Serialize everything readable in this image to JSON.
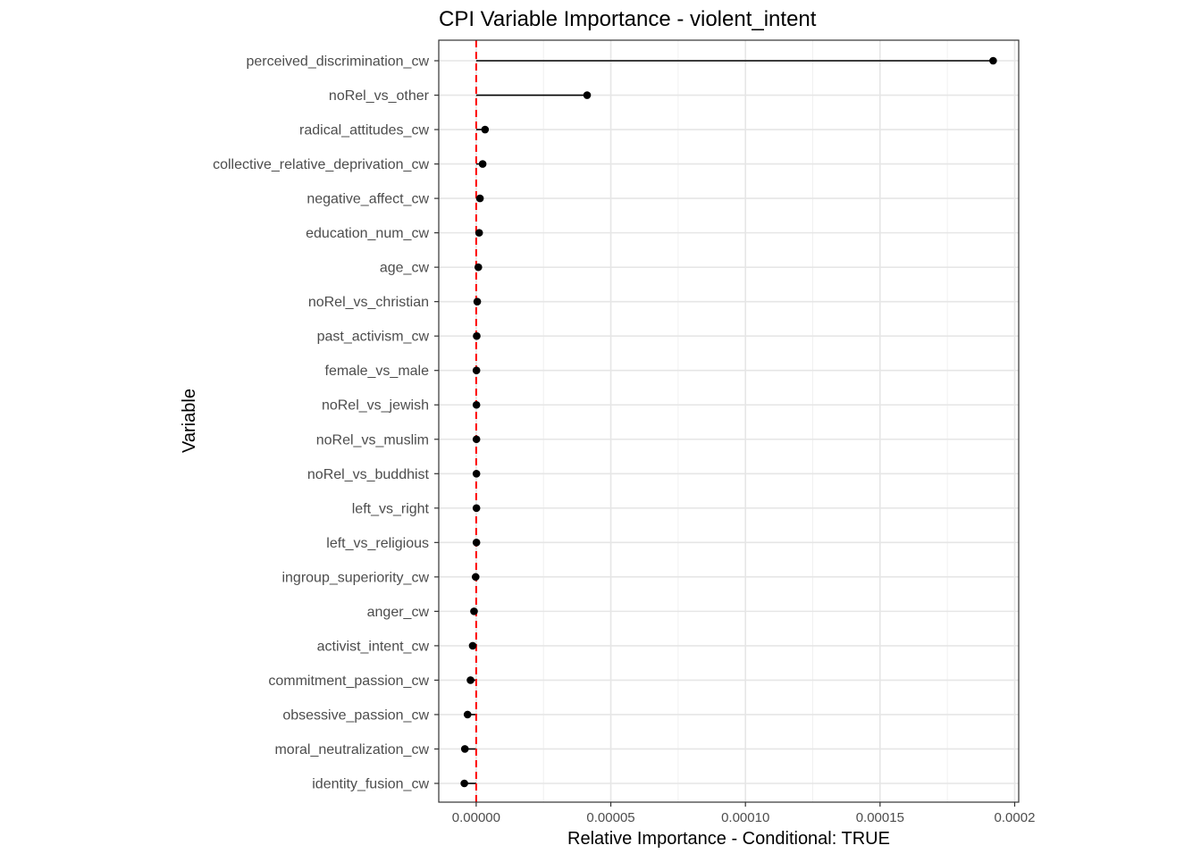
{
  "chart_data": {
    "type": "lollipop",
    "title": "CPI Variable Importance - violent_intent",
    "xlabel": "Relative Importance - Conditional: TRUE",
    "ylabel": "Variable",
    "xlim": [
      -1.39e-05,
      0.0002015
    ],
    "x_ticks": [
      0,
      5e-05,
      0.0001,
      0.00015,
      0.0002
    ],
    "x_tick_labels": [
      "0.00000",
      "0.00005",
      "0.00010",
      "0.00015",
      "0.0002"
    ],
    "reference_line": {
      "x": 0,
      "style": "dashed",
      "color": "#ff0000"
    },
    "grid": true,
    "categories": [
      "perceived_discrimination_cw",
      "noRel_vs_other",
      "radical_attitudes_cw",
      "collective_relative_deprivation_cw",
      "negative_affect_cw",
      "education_num_cw",
      "age_cw",
      "noRel_vs_christian",
      "past_activism_cw",
      "female_vs_male",
      "noRel_vs_jewish",
      "noRel_vs_muslim",
      "noRel_vs_buddhist",
      "left_vs_right",
      "left_vs_religious",
      "ingroup_superiority_cw",
      "anger_cw",
      "activist_intent_cw",
      "commitment_passion_cw",
      "obsessive_passion_cw",
      "moral_neutralization_cw",
      "identity_fusion_cw"
    ],
    "values": [
      0.000192,
      4.12e-05,
      3.3e-06,
      2.4e-06,
      1.4e-06,
      1.1e-06,
      8e-07,
      4e-07,
      2e-07,
      1e-07,
      1e-07,
      1e-07,
      1e-07,
      1e-07,
      1e-07,
      -2e-07,
      -8e-07,
      -1.3e-06,
      -2.1e-06,
      -3.2e-06,
      -4.2e-06,
      -4.4e-06
    ]
  }
}
